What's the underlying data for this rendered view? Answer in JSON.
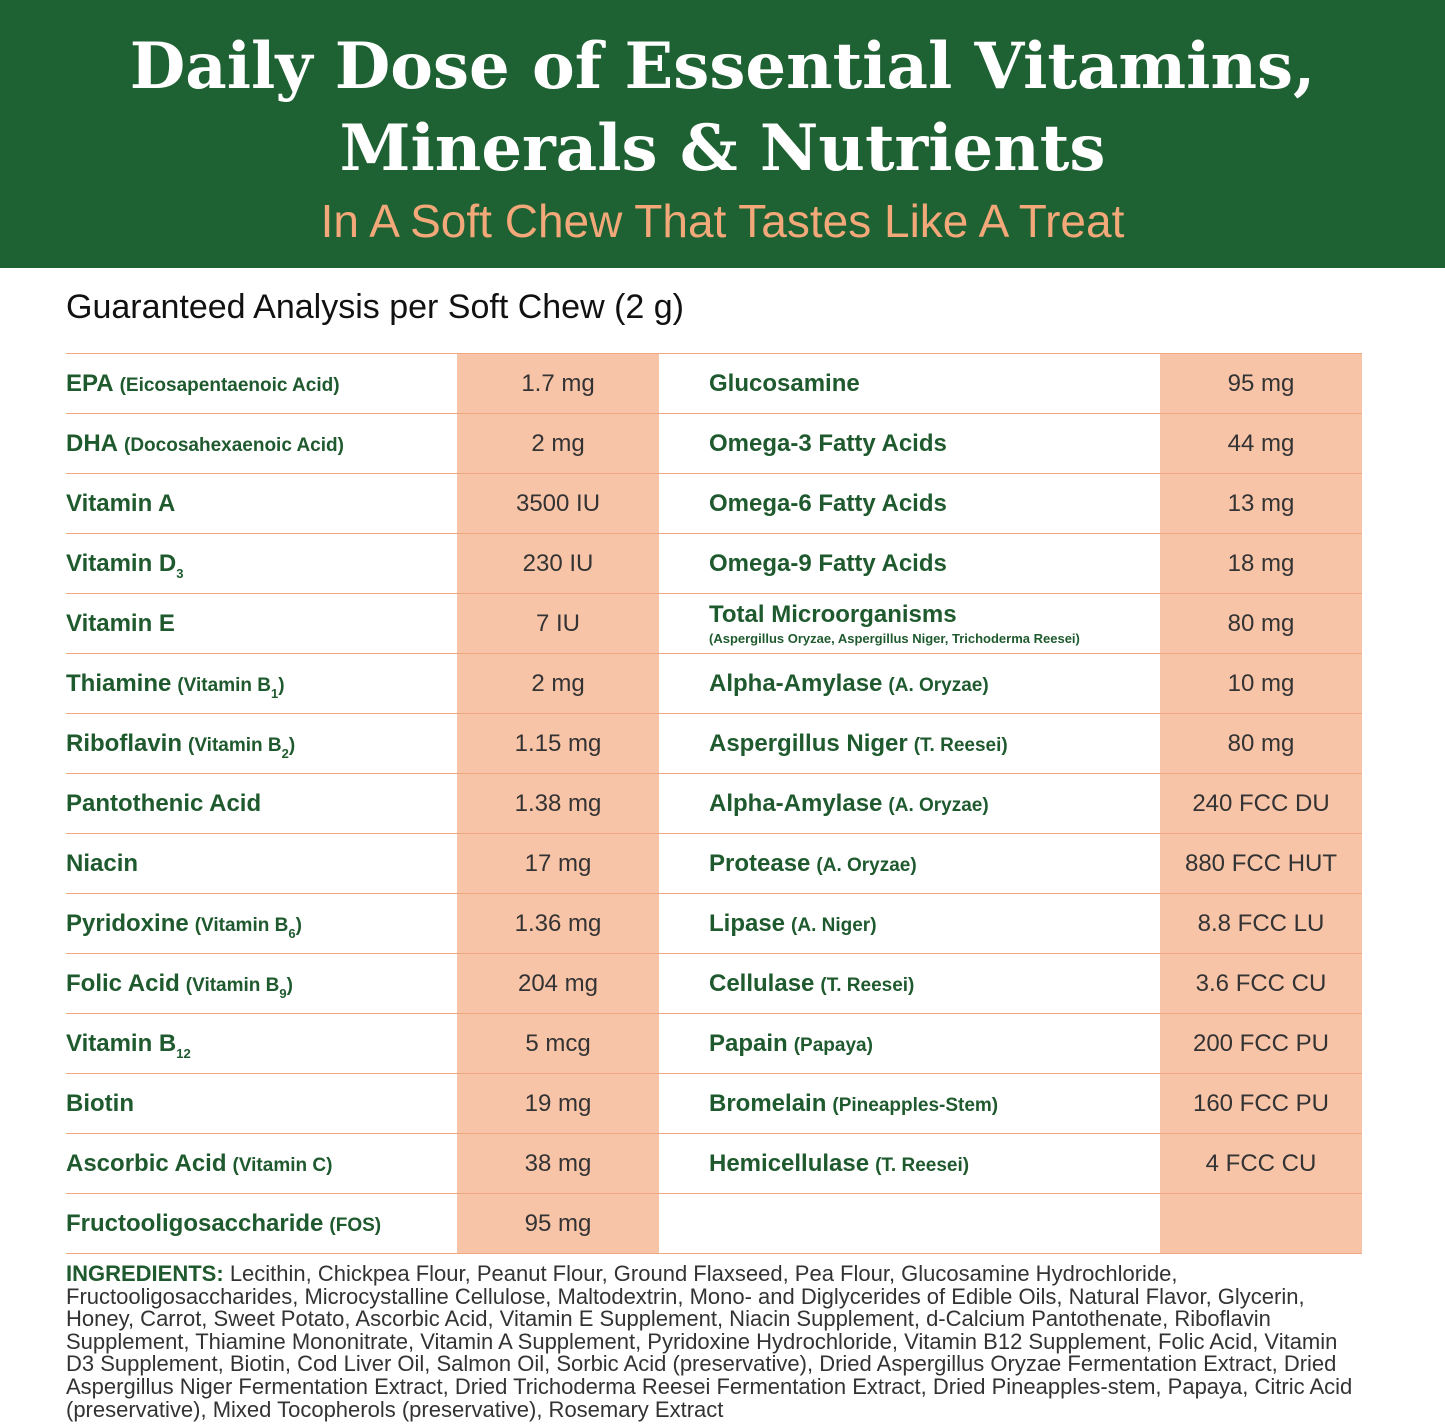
{
  "header": {
    "title_lines": [
      "Daily Dose of Essential Vitamins,",
      "Minerals & Nutrients"
    ],
    "subtitle": "In A Soft Chew That Tastes Like A Treat"
  },
  "table": {
    "heading": "Guaranteed Analysis per Soft Chew (2 g)",
    "rows": [
      {
        "left": {
          "label": [
            {
              "text": "EPA",
              "kind": "name"
            },
            {
              "text": "(Eicosapentaenoic Acid)",
              "kind": "note"
            }
          ],
          "amount": "1.7 mg"
        },
        "right": {
          "label": [
            {
              "text": "Glucosamine",
              "kind": "name"
            }
          ],
          "amount": "95 mg"
        }
      },
      {
        "left": {
          "label": [
            {
              "text": "DHA",
              "kind": "name"
            },
            {
              "text": "(Docosahexaenoic Acid)",
              "kind": "note"
            }
          ],
          "amount": "2 mg"
        },
        "right": {
          "label": [
            {
              "text": "Omega-3 Fatty Acids",
              "kind": "name"
            }
          ],
          "amount": "44 mg"
        }
      },
      {
        "left": {
          "label": [
            {
              "text": "Vitamin A",
              "kind": "name"
            }
          ],
          "amount": "3500 IU"
        },
        "right": {
          "label": [
            {
              "text": "Omega-6 Fatty Acids",
              "kind": "name"
            }
          ],
          "amount": "13 mg"
        }
      },
      {
        "left": {
          "label": [
            {
              "text": "Vitamin D",
              "kind": "name"
            },
            {
              "text": "3",
              "kind": "sub"
            }
          ],
          "amount": "230 IU"
        },
        "right": {
          "label": [
            {
              "text": "Omega-9 Fatty Acids",
              "kind": "name"
            }
          ],
          "amount": "18 mg"
        }
      },
      {
        "left": {
          "label": [
            {
              "text": "Vitamin E",
              "kind": "name"
            }
          ],
          "amount": "7 IU"
        },
        "right": {
          "label": [
            {
              "text": "Total Microorganisms",
              "kind": "name"
            },
            {
              "text": "(Aspergillus Oryzae, Aspergillus Niger, Trichoderma Reesei)",
              "kind": "small"
            }
          ],
          "amount": "80 mg"
        }
      },
      {
        "left": {
          "label": [
            {
              "text": "Thiamine",
              "kind": "name"
            },
            {
              "text": "(Vitamin B",
              "kind": "note"
            },
            {
              "text": "1",
              "kind": "sub"
            },
            {
              "text": ")",
              "kind": "close"
            }
          ],
          "amount": "2 mg"
        },
        "right": {
          "label": [
            {
              "text": "Alpha-Amylase",
              "kind": "name"
            },
            {
              "text": "(A. Oryzae)",
              "kind": "note"
            }
          ],
          "amount": "10 mg"
        }
      },
      {
        "left": {
          "label": [
            {
              "text": "Riboflavin",
              "kind": "name"
            },
            {
              "text": "(Vitamin B",
              "kind": "note"
            },
            {
              "text": "2",
              "kind": "sub"
            },
            {
              "text": ")",
              "kind": "close"
            }
          ],
          "amount": "1.15 mg"
        },
        "right": {
          "label": [
            {
              "text": "Aspergillus Niger",
              "kind": "name"
            },
            {
              "text": "(T. Reesei)",
              "kind": "note"
            }
          ],
          "amount": "80 mg"
        }
      },
      {
        "left": {
          "label": [
            {
              "text": "Pantothenic Acid",
              "kind": "name"
            }
          ],
          "amount": "1.38 mg"
        },
        "right": {
          "label": [
            {
              "text": "Alpha-Amylase",
              "kind": "name"
            },
            {
              "text": "(A. Oryzae)",
              "kind": "note"
            }
          ],
          "amount": "240 FCC DU"
        }
      },
      {
        "left": {
          "label": [
            {
              "text": "Niacin",
              "kind": "name"
            }
          ],
          "amount": "17 mg"
        },
        "right": {
          "label": [
            {
              "text": "Protease",
              "kind": "name"
            },
            {
              "text": "(A. Oryzae)",
              "kind": "note"
            }
          ],
          "amount": "880 FCC HUT"
        }
      },
      {
        "left": {
          "label": [
            {
              "text": "Pyridoxine",
              "kind": "name"
            },
            {
              "text": "(Vitamin B",
              "kind": "note"
            },
            {
              "text": "6",
              "kind": "sub"
            },
            {
              "text": ")",
              "kind": "close"
            }
          ],
          "amount": "1.36 mg"
        },
        "right": {
          "label": [
            {
              "text": "Lipase",
              "kind": "name"
            },
            {
              "text": "(A. Niger)",
              "kind": "note"
            }
          ],
          "amount": "8.8 FCC LU"
        }
      },
      {
        "left": {
          "label": [
            {
              "text": "Folic Acid",
              "kind": "name"
            },
            {
              "text": "(Vitamin B",
              "kind": "note"
            },
            {
              "text": "9",
              "kind": "sub"
            },
            {
              "text": ")",
              "kind": "close"
            }
          ],
          "amount": "204 mg"
        },
        "right": {
          "label": [
            {
              "text": "Cellulase",
              "kind": "name"
            },
            {
              "text": "(T. Reesei)",
              "kind": "note"
            }
          ],
          "amount": "3.6 FCC CU"
        }
      },
      {
        "left": {
          "label": [
            {
              "text": "Vitamin B",
              "kind": "name"
            },
            {
              "text": "12",
              "kind": "sub"
            }
          ],
          "amount": "5 mcg"
        },
        "right": {
          "label": [
            {
              "text": "Papain",
              "kind": "name"
            },
            {
              "text": "(Papaya)",
              "kind": "note"
            }
          ],
          "amount": "200 FCC PU"
        }
      },
      {
        "left": {
          "label": [
            {
              "text": "Biotin",
              "kind": "name"
            }
          ],
          "amount": "19 mg"
        },
        "right": {
          "label": [
            {
              "text": "Bromelain",
              "kind": "name"
            },
            {
              "text": "(Pineapples-Stem)",
              "kind": "note"
            }
          ],
          "amount": "160 FCC PU"
        }
      },
      {
        "left": {
          "label": [
            {
              "text": "Ascorbic Acid",
              "kind": "name"
            },
            {
              "text": "(Vitamin C)",
              "kind": "note"
            }
          ],
          "amount": "38 mg"
        },
        "right": {
          "label": [
            {
              "text": "Hemicellulase",
              "kind": "name"
            },
            {
              "text": "(T. Reesei)",
              "kind": "note"
            }
          ],
          "amount": "4 FCC CU"
        }
      },
      {
        "left": {
          "label": [
            {
              "text": "Fructooligosaccharide",
              "kind": "name"
            },
            {
              "text": "(FOS)",
              "kind": "note"
            }
          ],
          "amount": "95 mg"
        }
      }
    ]
  },
  "ingredients": {
    "label": "INGREDIENTS:",
    "text": "Lecithin, Chickpea Flour, Peanut Flour, Ground Flaxseed, Pea Flour, Glucosamine Hydrochloride, Fructooligosaccharides, Microcystalline Cellulose, Maltodextrin, Mono- and Diglycerides of Edible Oils, Natural Flavor, Glycerin, Honey, Carrot, Sweet Potato, Ascorbic Acid, Vitamin E Supplement, Niacin Supplement, d-Calcium Pantothenate, Riboflavin Supplement, Thiamine Mononitrate, Vitamin A Supplement, Pyridoxine Hydrochloride, Vitamin B12 Supplement, Folic Acid, Vitamin D3 Supplement, Biotin, Cod Liver Oil, Salmon Oil, Sorbic Acid (preservative), Dried Aspergillus Oryzae Fermentation Extract, Dried Aspergillus Niger Fermentation Extract, Dried Trichoderma Reesei Fermentation Extract, Dried Pineapples-stem, Papaya, Citric Acid (preservative), Mixed Tocopherols (preservative), Rosemary Extract"
  }
}
